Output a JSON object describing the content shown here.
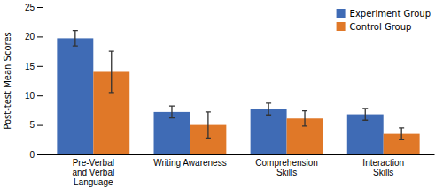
{
  "chart_data": {
    "type": "bar",
    "categories": [
      "Pre-Verbal\nand Verbal\nLanguage",
      "Writing Awareness",
      "Comprehension\nSkills",
      "Interaction\nSkills"
    ],
    "series": [
      {
        "name": "Experiment Group",
        "color": "#3F6BB5",
        "values": [
          19.7,
          7.2,
          7.7,
          6.8
        ],
        "errors": [
          1.3,
          1.0,
          1.0,
          1.0
        ]
      },
      {
        "name": "Control Group",
        "color": "#E07828",
        "values": [
          14.0,
          5.0,
          6.1,
          3.5
        ],
        "errors": [
          3.5,
          2.2,
          1.3,
          1.0
        ]
      }
    ],
    "ylabel": "Post-test Mean Scores",
    "ylim": [
      0,
      25
    ],
    "yticks": [
      0,
      5,
      10,
      15,
      20,
      25
    ],
    "grid": false,
    "legend": "upper right"
  }
}
